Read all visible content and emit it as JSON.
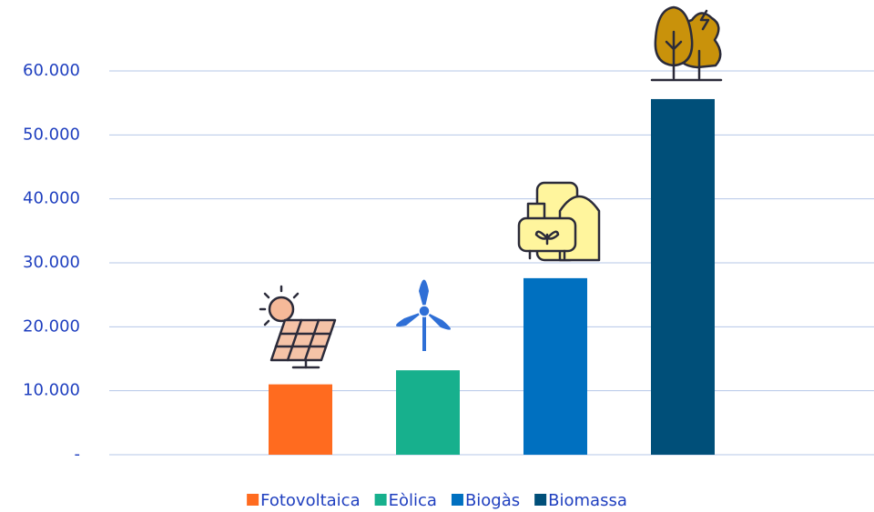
{
  "chart_data": {
    "type": "bar",
    "series": [
      {
        "name": "Fotovoltaica",
        "color": "#ff6b1f",
        "values": [
          11000
        ]
      },
      {
        "name": "Eòlica",
        "color": "#17b08d",
        "values": [
          13200
        ]
      },
      {
        "name": "Biogàs",
        "color": "#0070c0",
        "values": [
          27600
        ]
      },
      {
        "name": "Biomassa",
        "color": "#004f79",
        "values": [
          55600
        ]
      }
    ],
    "ylim": [
      0,
      60000
    ],
    "yticks": [
      {
        "value": 0,
        "label": "-"
      },
      {
        "value": 10000,
        "label": "10.000"
      },
      {
        "value": 20000,
        "label": "20.000"
      },
      {
        "value": 30000,
        "label": "30.000"
      },
      {
        "value": 40000,
        "label": "40.000"
      },
      {
        "value": 50000,
        "label": "50.000"
      },
      {
        "value": 60000,
        "label": "60.000"
      }
    ],
    "grid": true
  }
}
